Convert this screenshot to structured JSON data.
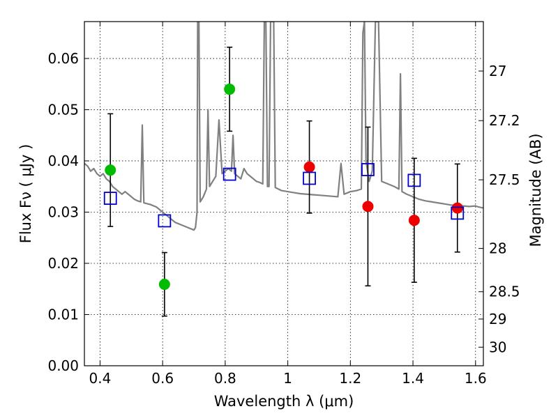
{
  "chart_data": {
    "type": "scatter",
    "title": "",
    "xlabel": "Wavelength  λ (μm)",
    "ylabel": "Flux  Fν  ( μJy )",
    "y2label": "Magnitude (AB)",
    "xlim": [
      0.35,
      1.625
    ],
    "ylim": [
      0.0,
      0.0672
    ],
    "grid": true,
    "xticks": [
      {
        "value": 0.4,
        "label": "0.4"
      },
      {
        "value": 0.6,
        "label": "0.6"
      },
      {
        "value": 0.8,
        "label": "0.8"
      },
      {
        "value": 1.0,
        "label": "1"
      },
      {
        "value": 1.2,
        "label": "1.2"
      },
      {
        "value": 1.4,
        "label": "1.4"
      },
      {
        "value": 1.6,
        "label": "1.6"
      }
    ],
    "yticks": [
      {
        "value": 0.0,
        "label": "0.00"
      },
      {
        "value": 0.01,
        "label": "0.01"
      },
      {
        "value": 0.02,
        "label": "0.02"
      },
      {
        "value": 0.03,
        "label": "0.03"
      },
      {
        "value": 0.04,
        "label": "0.04"
      },
      {
        "value": 0.05,
        "label": "0.05"
      },
      {
        "value": 0.06,
        "label": "0.06"
      }
    ],
    "y2ticks": [
      {
        "value": 27,
        "label": "27"
      },
      {
        "value": 27.2,
        "label": "27.2"
      },
      {
        "value": 27.5,
        "label": "27.5"
      },
      {
        "value": 28,
        "label": "28"
      },
      {
        "value": 28.5,
        "label": "28.5"
      },
      {
        "value": 29,
        "label": "29"
      },
      {
        "value": 30,
        "label": "30"
      }
    ],
    "colors": {
      "spectrum": "#808080",
      "green_points": "#00bb00",
      "red_points": "#ee0000",
      "model_squares": "#0000cc",
      "errorbars": "#000000"
    },
    "series": [
      {
        "kind": "line",
        "points": [
          [
            0.35,
            0.0395
          ],
          [
            0.36,
            0.039
          ],
          [
            0.37,
            0.038
          ],
          [
            0.38,
            0.0385
          ],
          [
            0.39,
            0.0375
          ],
          [
            0.4,
            0.037
          ],
          [
            0.41,
            0.0375
          ],
          [
            0.42,
            0.0365
          ],
          [
            0.43,
            0.036
          ],
          [
            0.44,
            0.035
          ],
          [
            0.45,
            0.0345
          ],
          [
            0.46,
            0.034
          ],
          [
            0.47,
            0.0335
          ],
          [
            0.48,
            0.034
          ],
          [
            0.49,
            0.0335
          ],
          [
            0.5,
            0.033
          ],
          [
            0.51,
            0.0325
          ],
          [
            0.52,
            0.0322
          ],
          [
            0.53,
            0.032
          ],
          [
            0.535,
            0.047
          ],
          [
            0.54,
            0.0318
          ],
          [
            0.56,
            0.0315
          ],
          [
            0.58,
            0.031
          ],
          [
            0.6,
            0.03
          ],
          [
            0.62,
            0.029
          ],
          [
            0.64,
            0.028
          ],
          [
            0.66,
            0.0275
          ],
          [
            0.68,
            0.027
          ],
          [
            0.7,
            0.0265
          ],
          [
            0.705,
            0.027
          ],
          [
            0.71,
            0.03
          ],
          [
            0.712,
            0.0672
          ],
          [
            0.716,
            0.0672
          ],
          [
            0.72,
            0.032
          ],
          [
            0.73,
            0.033
          ],
          [
            0.74,
            0.0345
          ],
          [
            0.745,
            0.05
          ],
          [
            0.75,
            0.035
          ],
          [
            0.76,
            0.036
          ],
          [
            0.77,
            0.037
          ],
          [
            0.78,
            0.048
          ],
          [
            0.79,
            0.0375
          ],
          [
            0.8,
            0.038
          ],
          [
            0.81,
            0.0385
          ],
          [
            0.82,
            0.038
          ],
          [
            0.825,
            0.045
          ],
          [
            0.83,
            0.0375
          ],
          [
            0.84,
            0.037
          ],
          [
            0.85,
            0.0365
          ],
          [
            0.86,
            0.0385
          ],
          [
            0.87,
            0.0375
          ],
          [
            0.88,
            0.037
          ],
          [
            0.89,
            0.0365
          ],
          [
            0.9,
            0.036
          ],
          [
            0.91,
            0.0358
          ],
          [
            0.92,
            0.0355
          ],
          [
            0.925,
            0.0672
          ],
          [
            0.93,
            0.0672
          ],
          [
            0.935,
            0.035
          ],
          [
            0.94,
            0.035
          ],
          [
            0.945,
            0.0672
          ],
          [
            0.955,
            0.0672
          ],
          [
            0.96,
            0.0348
          ],
          [
            0.97,
            0.0345
          ],
          [
            0.98,
            0.0342
          ],
          [
            1.0,
            0.034
          ],
          [
            1.02,
            0.0338
          ],
          [
            1.04,
            0.0336
          ],
          [
            1.06,
            0.0335
          ],
          [
            1.08,
            0.0334
          ],
          [
            1.1,
            0.0333
          ],
          [
            1.12,
            0.0332
          ],
          [
            1.14,
            0.0331
          ],
          [
            1.16,
            0.033
          ],
          [
            1.17,
            0.0395
          ],
          [
            1.18,
            0.0335
          ],
          [
            1.2,
            0.034
          ],
          [
            1.22,
            0.0342
          ],
          [
            1.235,
            0.0345
          ],
          [
            1.24,
            0.065
          ],
          [
            1.245,
            0.0672
          ],
          [
            1.25,
            0.04
          ],
          [
            1.26,
            0.036
          ],
          [
            1.27,
            0.038
          ],
          [
            1.28,
            0.0672
          ],
          [
            1.29,
            0.0672
          ],
          [
            1.3,
            0.036
          ],
          [
            1.32,
            0.0355
          ],
          [
            1.34,
            0.035
          ],
          [
            1.355,
            0.0345
          ],
          [
            1.36,
            0.057
          ],
          [
            1.365,
            0.034
          ],
          [
            1.38,
            0.0335
          ],
          [
            1.4,
            0.033
          ],
          [
            1.42,
            0.0325
          ],
          [
            1.44,
            0.0322
          ],
          [
            1.46,
            0.032
          ],
          [
            1.48,
            0.0318
          ],
          [
            1.5,
            0.0316
          ],
          [
            1.52,
            0.0314
          ],
          [
            1.54,
            0.0313
          ],
          [
            1.56,
            0.0312
          ],
          [
            1.58,
            0.0311
          ],
          [
            1.6,
            0.0312
          ],
          [
            1.61,
            0.031
          ],
          [
            1.625,
            0.0308
          ]
        ]
      },
      {
        "kind": "points",
        "marker": "circle",
        "points": [
          {
            "x": 0.433,
            "y": 0.0382,
            "err": 0.011
          },
          {
            "x": 0.606,
            "y": 0.0159,
            "err": 0.0062
          },
          {
            "x": 0.814,
            "y": 0.054,
            "err": 0.0082
          }
        ]
      },
      {
        "kind": "points",
        "marker": "circle",
        "points": [
          {
            "x": 1.069,
            "y": 0.0388,
            "err": 0.009
          },
          {
            "x": 1.256,
            "y": 0.0311,
            "err": 0.0155
          },
          {
            "x": 1.404,
            "y": 0.0284,
            "err": 0.0121
          },
          {
            "x": 1.542,
            "y": 0.0308,
            "err": 0.0086
          }
        ]
      },
      {
        "kind": "points",
        "marker": "square",
        "points": [
          {
            "x": 0.433,
            "y": 0.0327
          },
          {
            "x": 0.606,
            "y": 0.0283
          },
          {
            "x": 0.814,
            "y": 0.0374
          },
          {
            "x": 1.069,
            "y": 0.0366
          },
          {
            "x": 1.256,
            "y": 0.0383
          },
          {
            "x": 1.404,
            "y": 0.0362
          },
          {
            "x": 1.542,
            "y": 0.0298
          }
        ]
      }
    ]
  }
}
